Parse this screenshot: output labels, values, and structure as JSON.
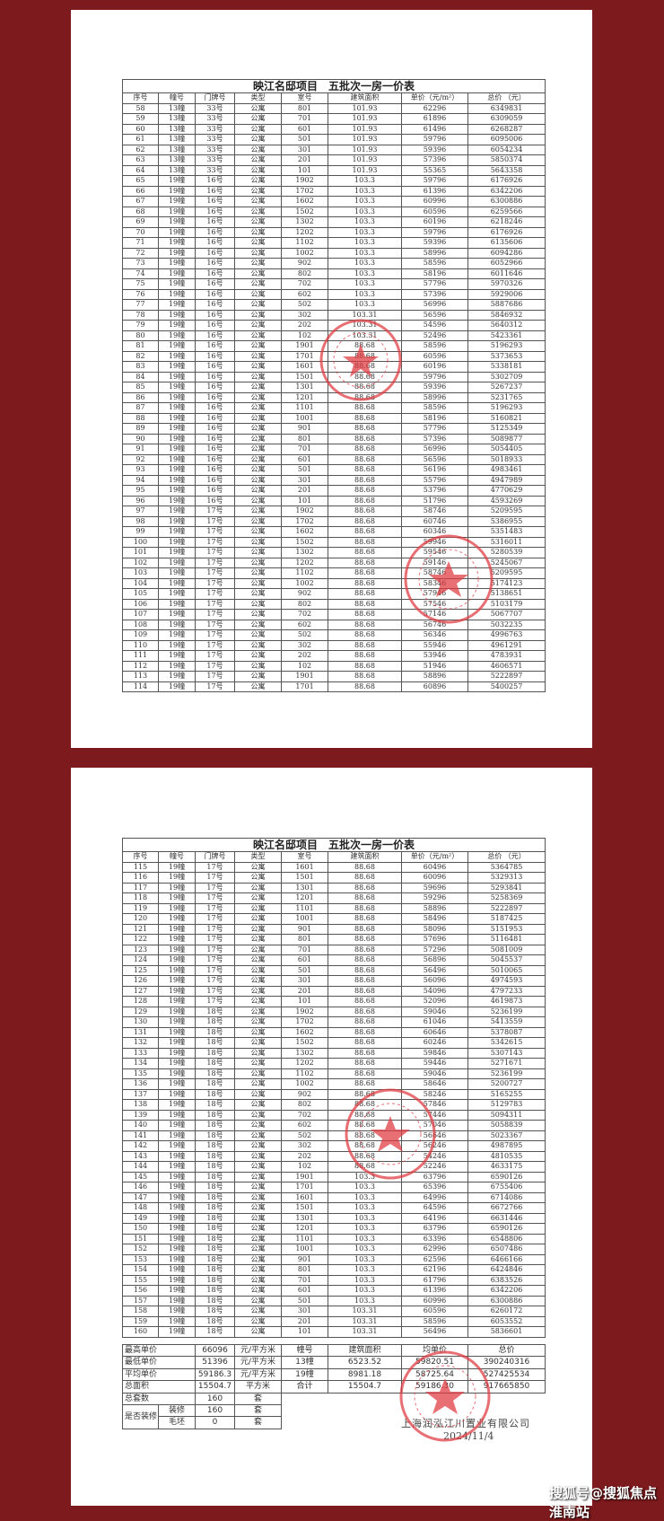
{
  "document": {
    "title": "映江名邸项目　五批次一房一价表",
    "headers": [
      "序号",
      "幢号",
      "门牌号",
      "类型",
      "室号",
      "建筑面积",
      "单价（元/m²）",
      "总价 （元）"
    ],
    "page1_rows": [
      [
        "58",
        "13幢",
        "33号",
        "公寓",
        "801",
        "101.93",
        "62296",
        "6349831"
      ],
      [
        "59",
        "13幢",
        "33号",
        "公寓",
        "701",
        "101.93",
        "61896",
        "6309059"
      ],
      [
        "60",
        "13幢",
        "33号",
        "公寓",
        "601",
        "101.93",
        "61496",
        "6268287"
      ],
      [
        "61",
        "13幢",
        "33号",
        "公寓",
        "501",
        "101.93",
        "59796",
        "6095006"
      ],
      [
        "62",
        "13幢",
        "33号",
        "公寓",
        "301",
        "101.93",
        "59396",
        "6054234"
      ],
      [
        "63",
        "13幢",
        "33号",
        "公寓",
        "201",
        "101.93",
        "57396",
        "5850374"
      ],
      [
        "64",
        "13幢",
        "33号",
        "公寓",
        "101",
        "101.93",
        "55365",
        "5643358"
      ],
      [
        "65",
        "19幢",
        "16号",
        "公寓",
        "1902",
        "103.3",
        "59796",
        "6176926"
      ],
      [
        "66",
        "19幢",
        "16号",
        "公寓",
        "1702",
        "103.3",
        "61396",
        "6342206"
      ],
      [
        "67",
        "19幢",
        "16号",
        "公寓",
        "1602",
        "103.3",
        "60996",
        "6300886"
      ],
      [
        "68",
        "19幢",
        "16号",
        "公寓",
        "1502",
        "103.3",
        "60596",
        "6259566"
      ],
      [
        "69",
        "19幢",
        "16号",
        "公寓",
        "1302",
        "103.3",
        "60196",
        "6218246"
      ],
      [
        "70",
        "19幢",
        "16号",
        "公寓",
        "1202",
        "103.3",
        "59796",
        "6176926"
      ],
      [
        "71",
        "19幢",
        "16号",
        "公寓",
        "1102",
        "103.3",
        "59396",
        "6135606"
      ],
      [
        "72",
        "19幢",
        "16号",
        "公寓",
        "1002",
        "103.3",
        "58996",
        "6094286"
      ],
      [
        "73",
        "19幢",
        "16号",
        "公寓",
        "902",
        "103.3",
        "58596",
        "6052966"
      ],
      [
        "74",
        "19幢",
        "16号",
        "公寓",
        "802",
        "103.3",
        "58196",
        "6011646"
      ],
      [
        "75",
        "19幢",
        "16号",
        "公寓",
        "702",
        "103.3",
        "57796",
        "5970326"
      ],
      [
        "76",
        "19幢",
        "16号",
        "公寓",
        "602",
        "103.3",
        "57396",
        "5929006"
      ],
      [
        "77",
        "19幢",
        "16号",
        "公寓",
        "502",
        "103.3",
        "56996",
        "5887686"
      ],
      [
        "78",
        "19幢",
        "16号",
        "公寓",
        "302",
        "103.31",
        "56596",
        "5846932"
      ],
      [
        "79",
        "19幢",
        "16号",
        "公寓",
        "202",
        "103.31",
        "54596",
        "5640312"
      ],
      [
        "80",
        "19幢",
        "16号",
        "公寓",
        "102",
        "103.31",
        "52496",
        "5423361"
      ],
      [
        "81",
        "19幢",
        "16号",
        "公寓",
        "1901",
        "88.68",
        "58596",
        "5196293"
      ],
      [
        "82",
        "19幢",
        "16号",
        "公寓",
        "1701",
        "88.68",
        "60596",
        "5373653"
      ],
      [
        "83",
        "19幢",
        "16号",
        "公寓",
        "1601",
        "88.68",
        "60196",
        "5338181"
      ],
      [
        "84",
        "19幢",
        "16号",
        "公寓",
        "1501",
        "88.68",
        "59796",
        "5302709"
      ],
      [
        "85",
        "19幢",
        "16号",
        "公寓",
        "1301",
        "88.68",
        "59396",
        "5267237"
      ],
      [
        "86",
        "19幢",
        "16号",
        "公寓",
        "1201",
        "88.68",
        "58996",
        "5231765"
      ],
      [
        "87",
        "19幢",
        "16号",
        "公寓",
        "1101",
        "88.68",
        "58596",
        "5196293"
      ],
      [
        "88",
        "19幢",
        "16号",
        "公寓",
        "1001",
        "88.68",
        "58196",
        "5160821"
      ],
      [
        "89",
        "19幢",
        "16号",
        "公寓",
        "901",
        "88.68",
        "57796",
        "5125349"
      ],
      [
        "90",
        "19幢",
        "16号",
        "公寓",
        "801",
        "88.68",
        "57396",
        "5089877"
      ],
      [
        "91",
        "19幢",
        "16号",
        "公寓",
        "701",
        "88.68",
        "56996",
        "5054405"
      ],
      [
        "92",
        "19幢",
        "16号",
        "公寓",
        "601",
        "88.68",
        "56596",
        "5018933"
      ],
      [
        "93",
        "19幢",
        "16号",
        "公寓",
        "501",
        "88.68",
        "56196",
        "4983461"
      ],
      [
        "94",
        "19幢",
        "16号",
        "公寓",
        "301",
        "88.68",
        "55796",
        "4947989"
      ],
      [
        "95",
        "19幢",
        "16号",
        "公寓",
        "201",
        "88.68",
        "53796",
        "4770629"
      ],
      [
        "96",
        "19幢",
        "16号",
        "公寓",
        "101",
        "88.68",
        "51796",
        "4593269"
      ],
      [
        "97",
        "19幢",
        "17号",
        "公寓",
        "1902",
        "88.68",
        "58746",
        "5209595"
      ],
      [
        "98",
        "19幢",
        "17号",
        "公寓",
        "1702",
        "88.68",
        "60746",
        "5386955"
      ],
      [
        "99",
        "19幢",
        "17号",
        "公寓",
        "1602",
        "88.68",
        "60346",
        "5351483"
      ],
      [
        "100",
        "19幢",
        "17号",
        "公寓",
        "1502",
        "88.68",
        "59946",
        "5316011"
      ],
      [
        "101",
        "19幢",
        "17号",
        "公寓",
        "1302",
        "88.68",
        "59546",
        "5280539"
      ],
      [
        "102",
        "19幢",
        "17号",
        "公寓",
        "1202",
        "88.68",
        "59146",
        "5245067"
      ],
      [
        "103",
        "19幢",
        "17号",
        "公寓",
        "1102",
        "88.68",
        "58746",
        "5209595"
      ],
      [
        "104",
        "19幢",
        "17号",
        "公寓",
        "1002",
        "88.68",
        "58346",
        "5174123"
      ],
      [
        "105",
        "19幢",
        "17号",
        "公寓",
        "902",
        "88.68",
        "57946",
        "5138651"
      ],
      [
        "106",
        "19幢",
        "17号",
        "公寓",
        "802",
        "88.68",
        "57546",
        "5103179"
      ],
      [
        "107",
        "19幢",
        "17号",
        "公寓",
        "702",
        "88.68",
        "57146",
        "5067707"
      ],
      [
        "108",
        "19幢",
        "17号",
        "公寓",
        "602",
        "88.68",
        "56746",
        "5032235"
      ],
      [
        "109",
        "19幢",
        "17号",
        "公寓",
        "502",
        "88.68",
        "56346",
        "4996763"
      ],
      [
        "110",
        "19幢",
        "17号",
        "公寓",
        "302",
        "88.68",
        "55946",
        "4961291"
      ],
      [
        "111",
        "19幢",
        "17号",
        "公寓",
        "202",
        "88.68",
        "53946",
        "4783931"
      ],
      [
        "112",
        "19幢",
        "17号",
        "公寓",
        "102",
        "88.68",
        "51946",
        "4606571"
      ],
      [
        "113",
        "19幢",
        "17号",
        "公寓",
        "1901",
        "88.68",
        "58896",
        "5222897"
      ],
      [
        "114",
        "19幢",
        "17号",
        "公寓",
        "1701",
        "88.68",
        "60896",
        "5400257"
      ]
    ],
    "page2_rows": [
      [
        "115",
        "19幢",
        "17号",
        "公寓",
        "1601",
        "88.68",
        "60496",
        "5364785"
      ],
      [
        "116",
        "19幢",
        "17号",
        "公寓",
        "1501",
        "88.68",
        "60096",
        "5329313"
      ],
      [
        "117",
        "19幢",
        "17号",
        "公寓",
        "1301",
        "88.68",
        "59696",
        "5293841"
      ],
      [
        "118",
        "19幢",
        "17号",
        "公寓",
        "1201",
        "88.68",
        "59296",
        "5258369"
      ],
      [
        "119",
        "19幢",
        "17号",
        "公寓",
        "1101",
        "88.68",
        "58896",
        "5222897"
      ],
      [
        "120",
        "19幢",
        "17号",
        "公寓",
        "1001",
        "88.68",
        "58496",
        "5187425"
      ],
      [
        "121",
        "19幢",
        "17号",
        "公寓",
        "901",
        "88.68",
        "58096",
        "5151953"
      ],
      [
        "122",
        "19幢",
        "17号",
        "公寓",
        "801",
        "88.68",
        "57696",
        "5116481"
      ],
      [
        "123",
        "19幢",
        "17号",
        "公寓",
        "701",
        "88.68",
        "57296",
        "5081009"
      ],
      [
        "124",
        "19幢",
        "17号",
        "公寓",
        "601",
        "88.68",
        "56896",
        "5045537"
      ],
      [
        "125",
        "19幢",
        "17号",
        "公寓",
        "501",
        "88.68",
        "56496",
        "5010065"
      ],
      [
        "126",
        "19幢",
        "17号",
        "公寓",
        "301",
        "88.68",
        "56096",
        "4974593"
      ],
      [
        "127",
        "19幢",
        "17号",
        "公寓",
        "201",
        "88.68",
        "54096",
        "4797233"
      ],
      [
        "128",
        "19幢",
        "17号",
        "公寓",
        "101",
        "88.68",
        "52096",
        "4619873"
      ],
      [
        "129",
        "19幢",
        "18号",
        "公寓",
        "1902",
        "88.68",
        "59046",
        "5236199"
      ],
      [
        "130",
        "19幢",
        "18号",
        "公寓",
        "1702",
        "88.68",
        "61046",
        "5413559"
      ],
      [
        "131",
        "19幢",
        "18号",
        "公寓",
        "1602",
        "88.68",
        "60646",
        "5378087"
      ],
      [
        "132",
        "19幢",
        "18号",
        "公寓",
        "1502",
        "88.68",
        "60246",
        "5342615"
      ],
      [
        "133",
        "19幢",
        "18号",
        "公寓",
        "1302",
        "88.68",
        "59846",
        "5307143"
      ],
      [
        "134",
        "19幢",
        "18号",
        "公寓",
        "1202",
        "88.68",
        "59446",
        "5271671"
      ],
      [
        "135",
        "19幢",
        "18号",
        "公寓",
        "1102",
        "88.68",
        "59046",
        "5236199"
      ],
      [
        "136",
        "19幢",
        "18号",
        "公寓",
        "1002",
        "88.68",
        "58646",
        "5200727"
      ],
      [
        "137",
        "19幢",
        "18号",
        "公寓",
        "902",
        "88.68",
        "58246",
        "5165255"
      ],
      [
        "138",
        "19幢",
        "18号",
        "公寓",
        "802",
        "88.68",
        "57846",
        "5129783"
      ],
      [
        "139",
        "19幢",
        "18号",
        "公寓",
        "702",
        "88.68",
        "57446",
        "5094311"
      ],
      [
        "140",
        "19幢",
        "18号",
        "公寓",
        "602",
        "88.68",
        "57046",
        "5058839"
      ],
      [
        "141",
        "19幢",
        "18号",
        "公寓",
        "502",
        "88.68",
        "56646",
        "5023367"
      ],
      [
        "142",
        "19幢",
        "18号",
        "公寓",
        "302",
        "88.68",
        "56246",
        "4987895"
      ],
      [
        "143",
        "19幢",
        "18号",
        "公寓",
        "202",
        "88.68",
        "54246",
        "4810535"
      ],
      [
        "144",
        "19幢",
        "18号",
        "公寓",
        "102",
        "88.68",
        "52246",
        "4633175"
      ],
      [
        "145",
        "19幢",
        "18号",
        "公寓",
        "1901",
        "103.3",
        "63796",
        "6590126"
      ],
      [
        "146",
        "19幢",
        "18号",
        "公寓",
        "1701",
        "103.3",
        "65396",
        "6755406"
      ],
      [
        "147",
        "19幢",
        "18号",
        "公寓",
        "1601",
        "103.3",
        "64996",
        "6714086"
      ],
      [
        "148",
        "19幢",
        "18号",
        "公寓",
        "1501",
        "103.3",
        "64596",
        "6672766"
      ],
      [
        "149",
        "19幢",
        "18号",
        "公寓",
        "1301",
        "103.3",
        "64196",
        "6631446"
      ],
      [
        "150",
        "19幢",
        "18号",
        "公寓",
        "1201",
        "103.3",
        "63796",
        "6590126"
      ],
      [
        "151",
        "19幢",
        "18号",
        "公寓",
        "1101",
        "103.3",
        "63396",
        "6548806"
      ],
      [
        "152",
        "19幢",
        "18号",
        "公寓",
        "1001",
        "103.3",
        "62996",
        "6507486"
      ],
      [
        "153",
        "19幢",
        "18号",
        "公寓",
        "901",
        "103.3",
        "62596",
        "6466166"
      ],
      [
        "154",
        "19幢",
        "18号",
        "公寓",
        "801",
        "103.3",
        "62196",
        "6424846"
      ],
      [
        "155",
        "19幢",
        "18号",
        "公寓",
        "701",
        "103.3",
        "61796",
        "6383526"
      ],
      [
        "156",
        "19幢",
        "18号",
        "公寓",
        "601",
        "103.3",
        "61396",
        "6342206"
      ],
      [
        "157",
        "19幢",
        "18号",
        "公寓",
        "501",
        "103.3",
        "60996",
        "6300886"
      ],
      [
        "158",
        "19幢",
        "18号",
        "公寓",
        "301",
        "103.31",
        "60596",
        "6260172"
      ],
      [
        "159",
        "19幢",
        "18号",
        "公寓",
        "201",
        "103.31",
        "58596",
        "6053552"
      ],
      [
        "160",
        "19幢",
        "18号",
        "公寓",
        "101",
        "103.31",
        "56496",
        "5836601"
      ]
    ],
    "summary": {
      "max_price_label": "最高单价",
      "max_price": "66096",
      "max_price_unit": "元/平方米",
      "min_price_label": "最低单价",
      "min_price": "51396",
      "min_price_unit": "元/平方米",
      "avg_price_label": "平均单价",
      "avg_price": "59186.3",
      "avg_price_unit": "元/平方米",
      "total_area_label": "总面积",
      "total_area": "15504.7",
      "total_area_unit": "平方米",
      "total_units_label": "总套数",
      "total_units": "160",
      "total_units_unit": "套",
      "decor_label": "是否装修",
      "decorated_label": "装修",
      "decorated": "160",
      "decorated_unit": "套",
      "raw_label": "毛坯",
      "raw": "0",
      "raw_unit": "套",
      "bldg_headers": [
        "幢号",
        "建筑面积",
        "均单价",
        "总价"
      ],
      "bldg_rows": [
        [
          "13幢",
          "6523.52",
          "59820.51",
          "390240316"
        ],
        [
          "19幢",
          "8981.18",
          "58725.64",
          "527425534"
        ],
        [
          "合计",
          "15504.7",
          "59186.30",
          "917665850"
        ]
      ]
    },
    "company": "上海润泓江川置业有限公司",
    "date": "2024/11/4",
    "stamp_color": "#e0383e"
  },
  "watermark": "搜狐号@搜狐焦点淮南站"
}
